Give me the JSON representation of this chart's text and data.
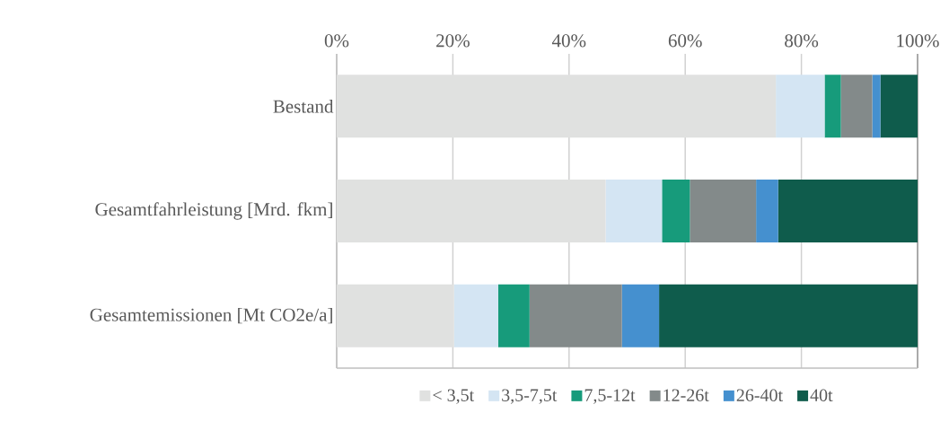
{
  "chart_data": {
    "type": "bar",
    "orientation": "horizontal",
    "stacked": true,
    "categories": [
      "Bestand",
      "Gesamtfahrleistung [Mrd. fkm]",
      "Gesamtemissionen [Mt CO2e/a]"
    ],
    "series": [
      {
        "name": "< 3,5t",
        "color": "#e0e1e0",
        "values": [
          75.6,
          46.3,
          20.2
        ]
      },
      {
        "name": "3,5-7,5t",
        "color": "#d4e5f3",
        "values": [
          8.4,
          9.7,
          7.6
        ]
      },
      {
        "name": "7,5-12t",
        "color": "#179b7b",
        "values": [
          2.8,
          4.8,
          5.4
        ]
      },
      {
        "name": "12-26t",
        "color": "#838a8a",
        "values": [
          5.4,
          11.4,
          15.9
        ]
      },
      {
        "name": "26-40t",
        "color": "#4590cf",
        "values": [
          1.4,
          3.8,
          6.4
        ]
      },
      {
        "name": "40t",
        "color": "#0f5c4c",
        "values": [
          6.4,
          24.0,
          44.5
        ]
      }
    ],
    "xlim": [
      0,
      100
    ],
    "xticks": [
      {
        "value": 0,
        "label": "0%"
      },
      {
        "value": 20,
        "label": "20%"
      },
      {
        "value": 40,
        "label": "40%"
      },
      {
        "value": 60,
        "label": "60%"
      },
      {
        "value": 80,
        "label": "80%"
      },
      {
        "value": 100,
        "label": "100%"
      }
    ],
    "grid": "x",
    "legend": "bottom"
  }
}
